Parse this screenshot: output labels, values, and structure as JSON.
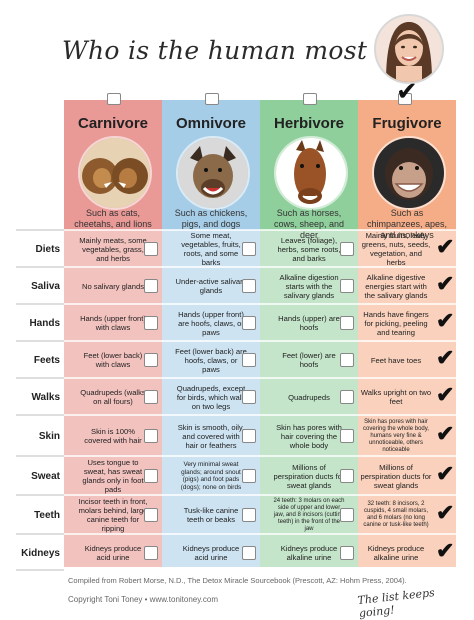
{
  "title": "Who is the human most like?",
  "colors": {
    "carnivore": "#ea9b98",
    "omnivore": "#a8cfe8",
    "herbivore": "#8fcf9c",
    "frugivore": "#f6b08c",
    "row_alt_carnivore": "#f3c8c4",
    "row_alt_omnivore": "#cde3f2",
    "row_alt_herbivore": "#c6e6cc",
    "row_alt_frugivore": "#f9d2bd"
  },
  "categories": [
    {
      "name": "Carnivore",
      "caption": "Such as cats, cheetahs, and lions",
      "icon": "lion-icon"
    },
    {
      "name": "Omnivore",
      "caption": "Such as chickens, pigs, and dogs",
      "icon": "dog-icon"
    },
    {
      "name": "Herbivore",
      "caption": "Such as horses, cows, sheep, and deer",
      "icon": "horse-icon"
    },
    {
      "name": "Frugivore",
      "caption": "Such as chimpanzees, apes, and monkeys",
      "icon": "chimpanzee-icon"
    }
  ],
  "rows": [
    {
      "label": "Diets",
      "cells": [
        "Mainly meats, some vegetables, grass, and herbs",
        "Some meat, vegetables, fruits, roots, and some barks",
        "Leaves (foliage), herbs, some roots, and barks",
        "Mainly fruits, leafy greens, nuts, seeds, vegetation, and herbs"
      ]
    },
    {
      "label": "Saliva",
      "cells": [
        "No salivary glands",
        "Under-active salivary glands",
        "Alkaline digestion starts with the salivary glands",
        "Alkaline digestive energies start with the salivary glands"
      ]
    },
    {
      "label": "Hands",
      "cells": [
        "Hands (upper front) with claws",
        "Hands (upper front) are hoofs, claws, or paws",
        "Hands (upper) are hoofs",
        "Hands have fingers for picking, peeling and tearing"
      ]
    },
    {
      "label": "Feets",
      "cells": [
        "Feet (lower back) with claws",
        "Feet (lower back) are hoofs, claws, or paws",
        "Feet (lower) are hoofs",
        "Feet have toes"
      ]
    },
    {
      "label": "Walks",
      "cells": [
        "Quadrupeds (walks on all fours)",
        "Quadrupeds, except for birds, which walk on two legs",
        "Quadrupeds",
        "Walks upright on two feet"
      ]
    },
    {
      "label": "Skin",
      "cells": [
        "Skin is 100% covered with hair",
        "Skin is smooth, oily, and covered with hair or feathers",
        "Skin has pores with hair covering the whole body",
        "Skin has pores with hair covering the whole body, humans very fine & unnoticeable, others noticeable"
      ]
    },
    {
      "label": "Sweat",
      "cells": [
        "Uses tongue to sweat, has sweat glands only in foot pads",
        "Very minimal sweat glands; around snout (pigs) and foot pads (dogs); none on birds",
        "Millions of perspiration ducts for sweat glands",
        "Millions of perspiration ducts for sweat glands"
      ]
    },
    {
      "label": "Teeth",
      "cells": [
        "Incisor teeth in front, molars behind, large canine teeth for ripping",
        "Tusk-like canine teeth or beaks",
        "24 teeth: 3 molars on each side of upper and lower jaw, and 8 incisors (cutting teeth) in the front of the jaw",
        "32 teeth: 8 incisors, 2 cuspids, 4 small molars, and 6 molars (no long canine or tusk-like teeth)"
      ]
    },
    {
      "label": "Kidneys",
      "cells": [
        "Kidneys produce acid urine",
        "Kidneys produce acid urine",
        "Kidneys produce alkaline urine",
        "Kidneys produce alkaline urine"
      ]
    }
  ],
  "footer": {
    "source": "Compiled from Robert Morse, N.D., The Detox Miracle Sourcebook (Prescott, AZ: Hohm Press, 2004).",
    "copyright": "Copyright Toni Toney • www.tonitoney.com",
    "tagline": "The list keeps going!"
  },
  "check_mark": "✔"
}
